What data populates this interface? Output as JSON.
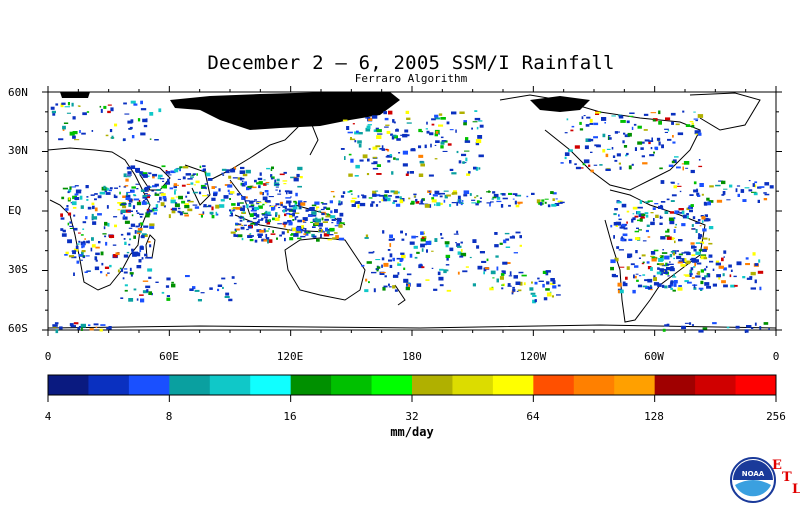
{
  "title": "December 2 – 6, 2005 SSM/I Rainfall",
  "subtitle": "Ferraro Algorithm",
  "lat_labels": [
    "60N",
    "30N",
    "EQ",
    "30S",
    "60S"
  ],
  "lon_labels": [
    "0",
    "60E",
    "120E",
    "180",
    "120W",
    "60W",
    "0"
  ],
  "colorbar": {
    "labels": [
      "4",
      "8",
      "16",
      "32",
      "64",
      "128",
      "256"
    ],
    "unit": "mm/day",
    "colors": [
      "#0a1a80",
      "#0a30c0",
      "#1a50ff",
      "#0aa0a0",
      "#10c8c8",
      "#10ffff",
      "#009000",
      "#00c000",
      "#00ff00",
      "#b0b000",
      "#dcdc00",
      "#ffff00",
      "#ff5000",
      "#ff8000",
      "#ffa000",
      "#a00000",
      "#d00000",
      "#ff0000"
    ]
  },
  "logo": {
    "text": "NOAA",
    "letters": [
      "E",
      "T",
      "L"
    ]
  }
}
